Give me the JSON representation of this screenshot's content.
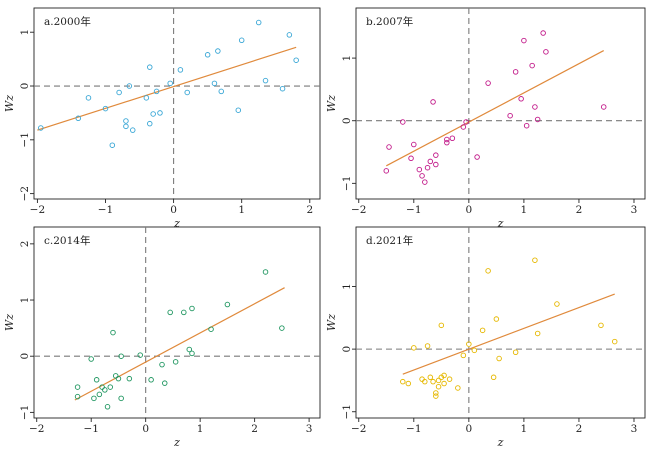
{
  "chart_data": [
    {
      "type": "scatter",
      "title": "a.2000年",
      "xlabel": "z",
      "ylabel": "Wz",
      "xlim": [
        -2.05,
        2.15
      ],
      "ylim": [
        -2.1,
        1.45
      ],
      "xticks": [
        -2,
        -1,
        0,
        1,
        2
      ],
      "yticks": [
        -2,
        -1,
        0,
        1
      ],
      "grid": false,
      "color": "#3aa7d6",
      "fit_line": {
        "x": [
          -2.0,
          1.8
        ],
        "y": [
          -0.82,
          0.72
        ]
      },
      "points": {
        "x": [
          -1.95,
          -1.4,
          -1.25,
          -1.0,
          -0.9,
          -0.8,
          -0.7,
          -0.7,
          -0.65,
          -0.6,
          -0.4,
          -0.35,
          -0.35,
          -0.3,
          -0.25,
          -0.2,
          -0.05,
          0.1,
          0.2,
          0.5,
          0.6,
          0.65,
          0.7,
          0.95,
          1.0,
          1.25,
          1.35,
          1.6,
          1.7,
          1.8
        ],
        "y": [
          -0.78,
          -0.6,
          -0.22,
          -0.42,
          -1.1,
          -0.12,
          -0.75,
          -0.65,
          0.0,
          -0.82,
          -0.22,
          0.35,
          -0.7,
          -0.52,
          -0.1,
          -0.5,
          0.05,
          0.3,
          -0.12,
          0.58,
          0.05,
          0.65,
          -0.1,
          -0.45,
          0.85,
          1.18,
          0.1,
          -0.05,
          0.95,
          0.48
        ]
      }
    },
    {
      "type": "scatter",
      "title": "b.2007年",
      "xlabel": "z",
      "ylabel": "Wz",
      "xlim": [
        -2.05,
        3.2
      ],
      "ylim": [
        -1.25,
        1.8
      ],
      "xticks": [
        -2,
        -1,
        0,
        1,
        2,
        3
      ],
      "yticks": [
        -1,
        0,
        1
      ],
      "grid": false,
      "color": "#c21a8a",
      "fit_line": {
        "x": [
          -1.5,
          2.45
        ],
        "y": [
          -0.72,
          1.12
        ]
      },
      "points": {
        "x": [
          -1.5,
          -1.45,
          -1.2,
          -1.05,
          -1.0,
          -0.9,
          -0.85,
          -0.8,
          -0.75,
          -0.7,
          -0.65,
          -0.6,
          -0.6,
          -0.4,
          -0.4,
          -0.3,
          -0.1,
          -0.05,
          0.15,
          0.35,
          0.75,
          0.85,
          0.95,
          1.0,
          1.05,
          1.15,
          1.2,
          1.25,
          1.35,
          1.4,
          2.45
        ],
        "y": [
          -0.8,
          -0.42,
          -0.02,
          -0.6,
          -0.38,
          -0.78,
          -0.88,
          -0.98,
          -0.75,
          -0.65,
          0.3,
          -0.55,
          -0.7,
          -0.3,
          -0.35,
          -0.28,
          -0.1,
          -0.02,
          -0.58,
          0.6,
          0.08,
          0.78,
          0.35,
          1.28,
          -0.08,
          0.88,
          0.22,
          0.02,
          1.4,
          1.1,
          0.22
        ]
      }
    },
    {
      "type": "scatter",
      "title": "c.2014年",
      "xlabel": "z",
      "ylabel": "Wz",
      "xlim": [
        -2.05,
        3.2
      ],
      "ylim": [
        -1.1,
        2.3
      ],
      "xticks": [
        -2,
        -1,
        0,
        1,
        2,
        3
      ],
      "yticks": [
        -1,
        0,
        1,
        2
      ],
      "grid": false,
      "color": "#1f9660",
      "fit_line": {
        "x": [
          -1.3,
          2.55
        ],
        "y": [
          -0.78,
          1.22
        ]
      },
      "points": {
        "x": [
          -1.25,
          -1.25,
          -1.0,
          -0.95,
          -0.9,
          -0.85,
          -0.8,
          -0.75,
          -0.7,
          -0.65,
          -0.6,
          -0.55,
          -0.5,
          -0.45,
          -0.45,
          -0.3,
          -0.1,
          0.1,
          0.3,
          0.35,
          0.45,
          0.55,
          0.7,
          0.8,
          0.85,
          0.85,
          1.2,
          1.5,
          2.2,
          2.5
        ],
        "y": [
          -0.72,
          -0.55,
          -0.05,
          -0.75,
          -0.42,
          -0.68,
          -0.55,
          -0.6,
          -0.9,
          -0.55,
          0.42,
          -0.35,
          -0.4,
          -0.75,
          0.0,
          -0.4,
          0.02,
          -0.42,
          -0.15,
          -0.48,
          0.78,
          -0.1,
          0.78,
          0.12,
          0.85,
          0.05,
          0.48,
          0.92,
          1.5,
          0.5
        ]
      }
    },
    {
      "type": "scatter",
      "title": "d.2021年",
      "xlabel": "z",
      "ylabel": "Wz",
      "xlim": [
        -2.05,
        3.2
      ],
      "ylim": [
        -1.1,
        1.95
      ],
      "xticks": [
        -2,
        -1,
        0,
        1,
        2,
        3
      ],
      "yticks": [
        -1,
        0,
        1
      ],
      "grid": false,
      "color": "#e6b800",
      "fit_line": {
        "x": [
          -1.2,
          2.65
        ],
        "y": [
          -0.4,
          0.88
        ]
      },
      "points": {
        "x": [
          -1.2,
          -1.1,
          -1.0,
          -0.85,
          -0.8,
          -0.75,
          -0.7,
          -0.65,
          -0.6,
          -0.6,
          -0.55,
          -0.55,
          -0.5,
          -0.5,
          -0.45,
          -0.45,
          -0.35,
          -0.2,
          -0.1,
          0.0,
          0.1,
          0.25,
          0.35,
          0.45,
          0.5,
          0.55,
          0.85,
          1.2,
          1.25,
          1.6,
          2.4,
          2.65
        ],
        "y": [
          -0.52,
          -0.55,
          0.02,
          -0.48,
          -0.52,
          0.05,
          -0.45,
          -0.52,
          -0.75,
          -0.7,
          -0.6,
          -0.5,
          -0.45,
          0.38,
          -0.55,
          -0.42,
          -0.48,
          -0.62,
          -0.1,
          0.08,
          -0.02,
          0.3,
          1.25,
          -0.45,
          0.48,
          -0.15,
          -0.05,
          1.42,
          0.25,
          0.72,
          0.38,
          0.12
        ]
      }
    }
  ]
}
